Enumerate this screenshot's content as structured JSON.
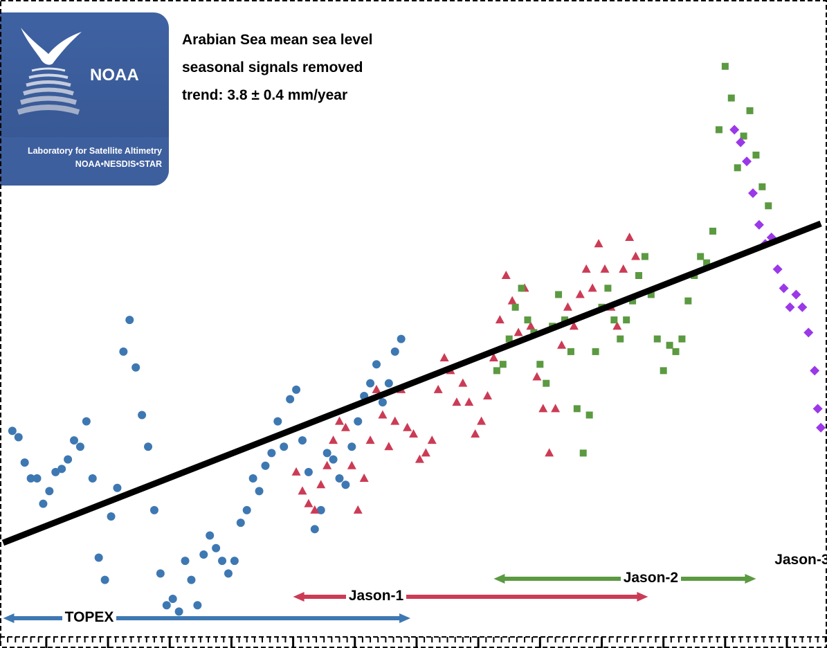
{
  "logo": {
    "text": "NOAA",
    "lab_line1": "Laboratory for Satellite Altimetry",
    "lab_line2": "NOAA•NESDIS•STAR"
  },
  "header": {
    "line1": "Arabian Sea mean sea level",
    "line2": "seasonal signals removed",
    "line3": "trend:  3.8 ± 0.4 mm/year"
  },
  "chart_data": {
    "type": "scatter",
    "title": "Arabian Sea mean sea level",
    "subtitle": "seasonal signals removed",
    "trend_text": "trend:  3.8 ± 0.4 mm/year",
    "xlabel": "",
    "ylabel": "",
    "xlim": [
      1992.5,
      2019.3
    ],
    "ylim": [
      -80,
      110
    ],
    "x_ticks": [
      1994,
      1996,
      1998,
      2000,
      2002,
      2004,
      2006,
      2008,
      2010,
      2012,
      2014,
      2016,
      2018
    ],
    "trend_line": {
      "slope": 3.8,
      "x": [
        1992.6,
        2019.1
      ],
      "y": [
        -50.3,
        50.4
      ],
      "color": "#000000"
    },
    "colors": {
      "TOPEX": "#3e78b2",
      "Jason-1": "#cc3b55",
      "Jason-2": "#5b9a41",
      "Jason-3": "#9b38e8"
    },
    "missions": [
      {
        "name": "TOPEX",
        "start": 1992.6,
        "end": 2005.8,
        "label_x": 1994.6
      },
      {
        "name": "Jason-1",
        "start": 2002.0,
        "end": 2013.5,
        "label_x": 2003.8
      },
      {
        "name": "Jason-2",
        "start": 2008.5,
        "end": 2017.0,
        "label_x": 2012.7
      },
      {
        "name": "Jason-3",
        "start": null,
        "end": null,
        "label_x": 2017.6
      }
    ],
    "series": [
      {
        "name": "TOPEX",
        "marker": "circle",
        "x": [
          1992.9,
          1993.1,
          1993.3,
          1993.5,
          1993.7,
          1993.9,
          1994.1,
          1994.3,
          1994.5,
          1994.7,
          1994.9,
          1995.1,
          1995.3,
          1995.5,
          1995.7,
          1995.9,
          1996.1,
          1996.3,
          1996.5,
          1996.7,
          1996.9,
          1997.1,
          1997.3,
          1997.5,
          1997.7,
          1997.9,
          1998.1,
          1998.3,
          1998.5,
          1998.7,
          1998.9,
          1999.1,
          1999.3,
          1999.5,
          1999.7,
          1999.9,
          2000.1,
          2000.3,
          2000.5,
          2000.7,
          2000.9,
          2001.1,
          2001.3,
          2001.5,
          2001.7,
          2001.9,
          2002.1,
          2002.3,
          2002.5,
          2002.7,
          2002.9,
          2003.1,
          2003.3,
          2003.5,
          2003.7,
          2003.9,
          2004.1,
          2004.3,
          2004.5,
          2004.7,
          2004.9,
          2005.1,
          2005.3,
          2005.5
        ],
        "y": [
          -15,
          -17,
          -25,
          -30,
          -30,
          -38,
          -34,
          -28,
          -27,
          -24,
          -18,
          -20,
          -12,
          -30,
          -55,
          -62,
          -42,
          -33,
          10,
          20,
          5,
          -10,
          -20,
          -40,
          -60,
          -70,
          -68,
          -72,
          -56,
          -62,
          -70,
          -54,
          -48,
          -52,
          -56,
          -60,
          -56,
          -44,
          -40,
          -30,
          -34,
          -26,
          -22,
          -12,
          -20,
          -5,
          -2,
          -18,
          -28,
          -46,
          -40,
          -22,
          -24,
          -30,
          -32,
          -20,
          -12,
          -4,
          0,
          6,
          -6,
          0,
          10,
          14
        ]
      },
      {
        "name": "Jason-1",
        "marker": "triangle",
        "x": [
          2002.1,
          2002.3,
          2002.5,
          2002.7,
          2002.9,
          2003.1,
          2003.3,
          2003.5,
          2003.7,
          2003.9,
          2004.1,
          2004.3,
          2004.5,
          2004.7,
          2004.9,
          2005.1,
          2005.3,
          2005.5,
          2005.7,
          2005.9,
          2006.1,
          2006.3,
          2006.5,
          2006.7,
          2006.9,
          2007.1,
          2007.3,
          2007.5,
          2007.7,
          2007.9,
          2008.1,
          2008.3,
          2008.5,
          2008.7,
          2008.9,
          2009.1,
          2009.3,
          2009.5,
          2009.7,
          2009.9,
          2010.1,
          2010.3,
          2010.5,
          2010.7,
          2010.9,
          2011.1,
          2011.3,
          2011.5,
          2011.7,
          2011.9,
          2012.1,
          2012.3,
          2012.5,
          2012.7,
          2012.9,
          2013.1
        ],
        "y": [
          -28,
          -34,
          -38,
          -40,
          -32,
          -26,
          -18,
          -12,
          -14,
          -26,
          -40,
          -30,
          -18,
          -2,
          -10,
          -20,
          -12,
          -2,
          -14,
          -16,
          -24,
          -22,
          -18,
          -2,
          8,
          4,
          -6,
          0,
          -6,
          -16,
          -12,
          -4,
          8,
          20,
          34,
          26,
          16,
          30,
          18,
          2,
          -8,
          -22,
          -8,
          12,
          24,
          18,
          28,
          36,
          30,
          44,
          36,
          24,
          18,
          36,
          46,
          40
        ]
      },
      {
        "name": "Jason-2",
        "marker": "square",
        "x": [
          2008.6,
          2008.8,
          2009.0,
          2009.2,
          2009.4,
          2009.6,
          2009.8,
          2010.0,
          2010.2,
          2010.4,
          2010.6,
          2010.8,
          2011.0,
          2011.2,
          2011.4,
          2011.6,
          2011.8,
          2012.0,
          2012.2,
          2012.4,
          2012.6,
          2012.8,
          2013.0,
          2013.2,
          2013.4,
          2013.6,
          2013.8,
          2014.0,
          2014.2,
          2014.4,
          2014.6,
          2014.8,
          2015.0,
          2015.2,
          2015.4,
          2015.6,
          2015.8,
          2016.0,
          2016.2,
          2016.4,
          2016.6,
          2016.8,
          2017.0,
          2017.2,
          2017.4
        ],
        "y": [
          4,
          6,
          14,
          24,
          30,
          20,
          16,
          6,
          0,
          18,
          28,
          20,
          10,
          -8,
          -22,
          -10,
          10,
          24,
          30,
          20,
          14,
          20,
          26,
          34,
          40,
          28,
          14,
          4,
          12,
          10,
          14,
          26,
          34,
          40,
          38,
          48,
          80,
          100,
          90,
          68,
          78,
          86,
          72,
          62,
          56
        ]
      },
      {
        "name": "Jason-3",
        "marker": "diamond",
        "x": [
          2016.3,
          2016.5,
          2016.7,
          2016.9,
          2017.1,
          2017.3,
          2017.5,
          2017.7,
          2017.9,
          2018.1,
          2018.3,
          2018.5,
          2018.7,
          2018.9,
          2019.0,
          2019.1
        ],
        "y": [
          80,
          76,
          70,
          60,
          50,
          44,
          46,
          36,
          30,
          24,
          28,
          24,
          16,
          4,
          -8,
          -14
        ]
      }
    ]
  }
}
